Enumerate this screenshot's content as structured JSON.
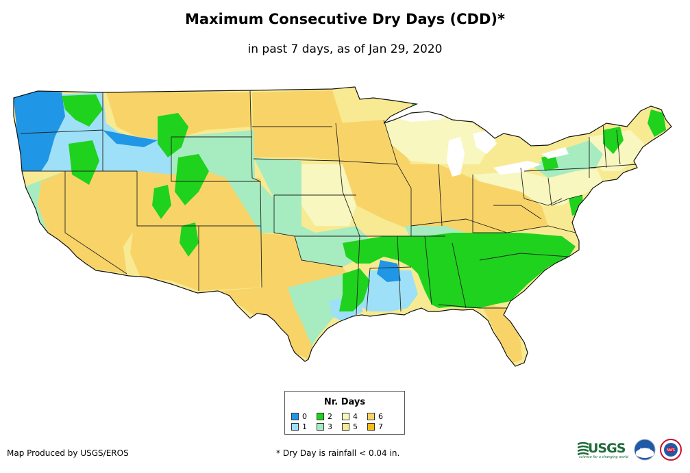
{
  "title": "Maximum Consecutive Dry Days (CDD)*",
  "subtitle": "in past 7 days, as of Jan 29, 2020",
  "legend": {
    "title": "Nr. Days",
    "items": [
      {
        "label": "0",
        "color": "#1f96e6"
      },
      {
        "label": "1",
        "color": "#9ee0f7"
      },
      {
        "label": "2",
        "color": "#1ed21e"
      },
      {
        "label": "3",
        "color": "#a7ecc0"
      },
      {
        "label": "4",
        "color": "#f7f7bf"
      },
      {
        "label": "5",
        "color": "#f8ea92"
      },
      {
        "label": "6",
        "color": "#f8d468"
      },
      {
        "label": "7",
        "color": "#f4bd16"
      }
    ]
  },
  "credit": "Map Produced by USGS/EROS",
  "footnote": "* Dry Day is rainfall < 0.04 in.",
  "logos": {
    "usgs_text": "USGS",
    "usgs_tagline": "science for a changing world",
    "noaa_text": "noaa",
    "nws_text": "NWS",
    "usgs_color": "#1f6b3a",
    "noaa_color": "#1e5aa8",
    "nws_color": "#c8102e"
  }
}
